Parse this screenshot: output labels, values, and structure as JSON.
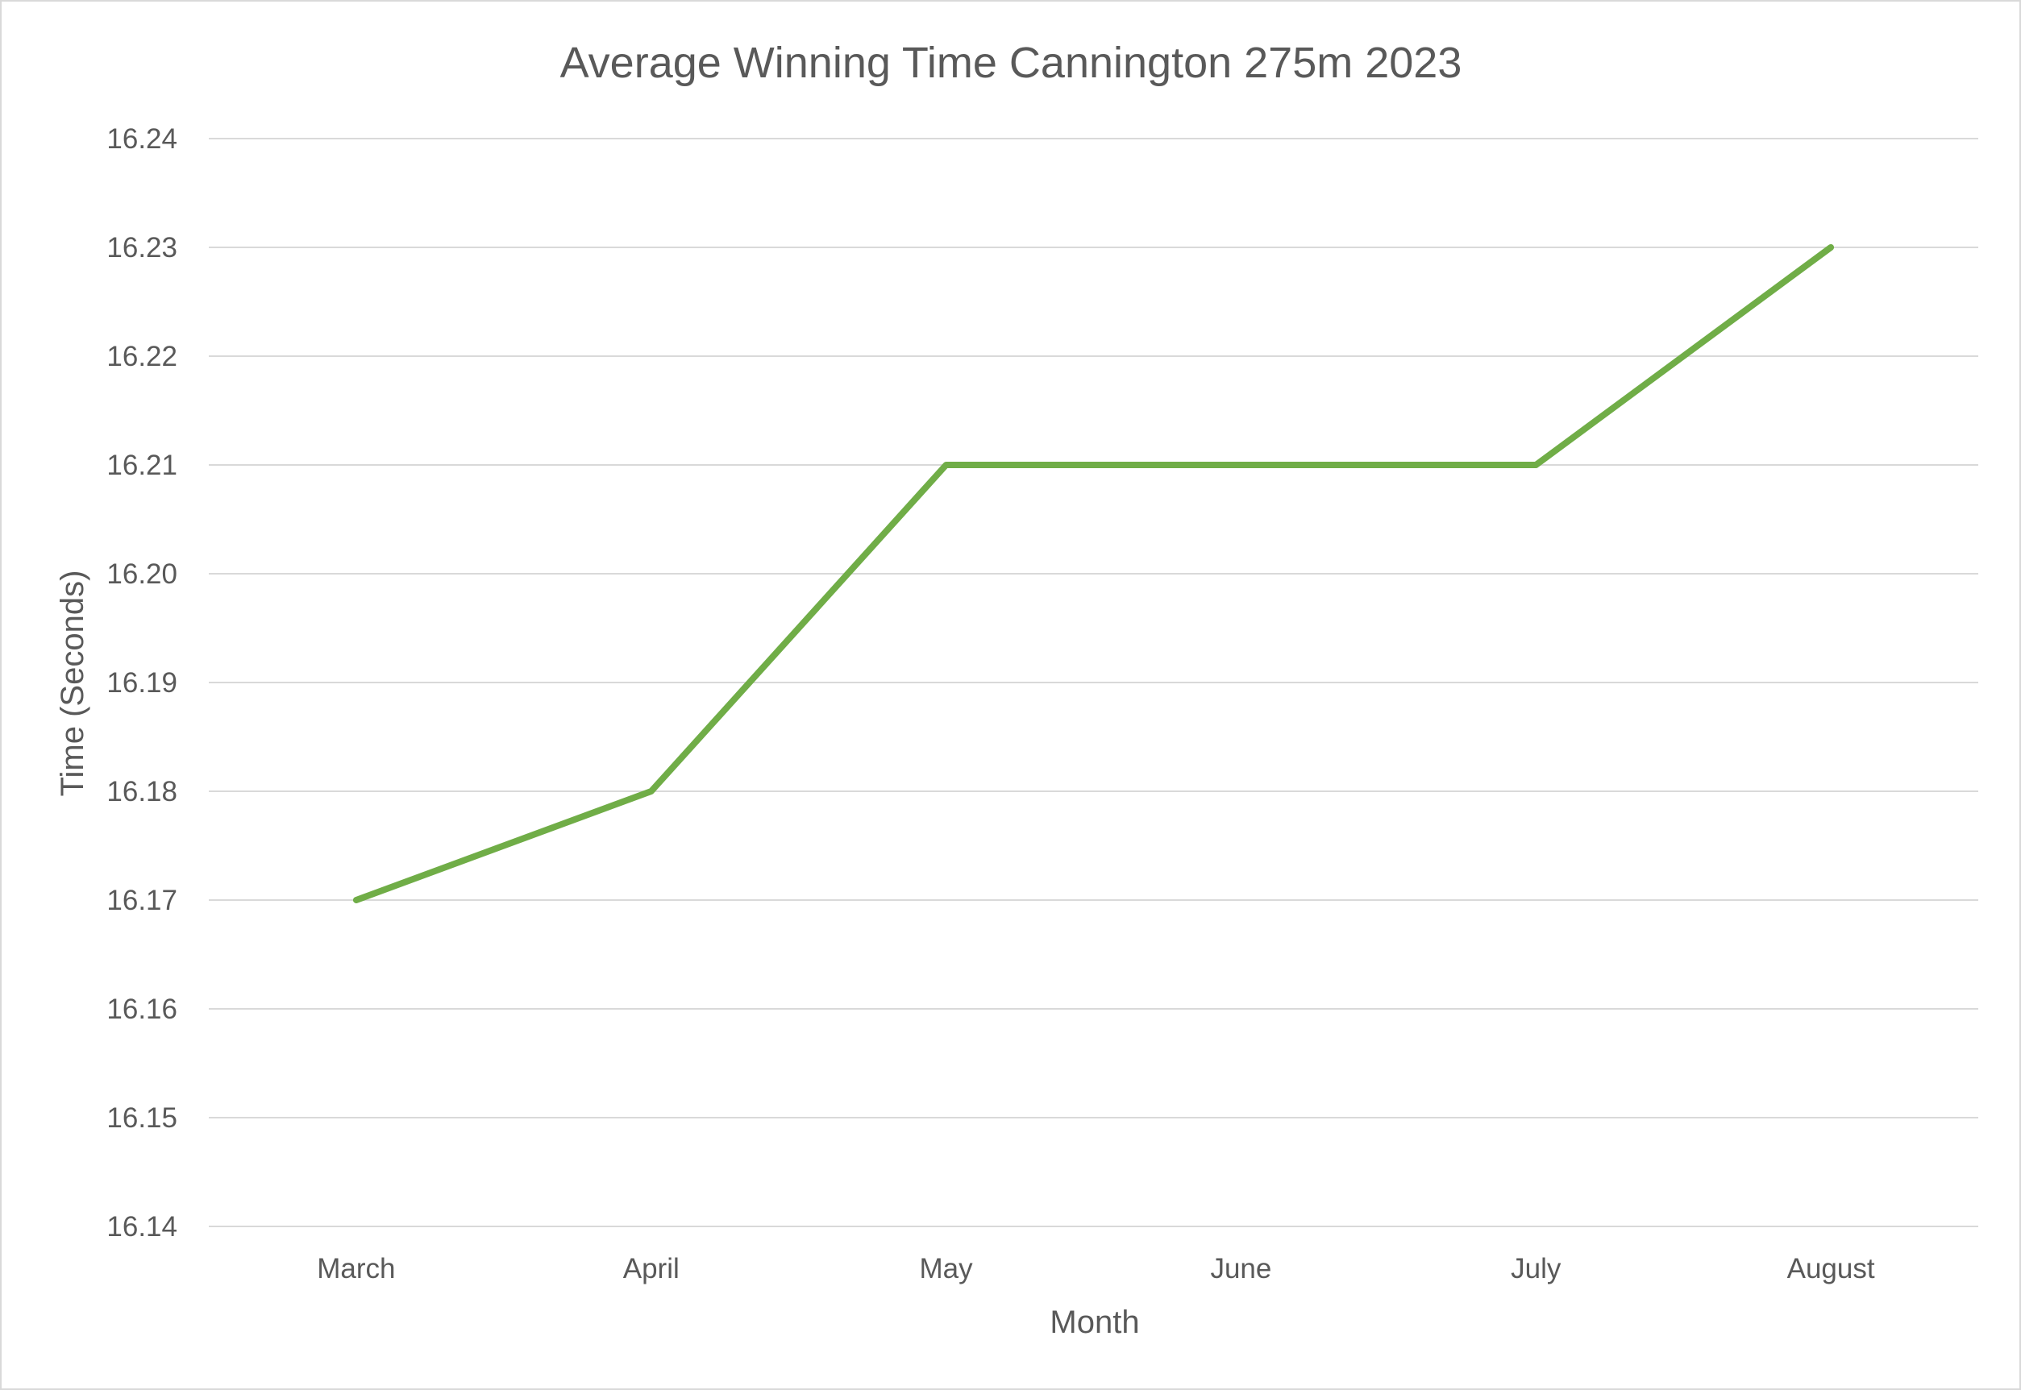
{
  "chart_data": {
    "type": "line",
    "title": "Average Winning Time Cannington 275m 2023",
    "xlabel": "Month",
    "ylabel": "Time (Seconds)",
    "categories": [
      "March",
      "April",
      "May",
      "June",
      "July",
      "August"
    ],
    "series": [
      {
        "values": [
          16.17,
          16.18,
          16.21,
          16.21,
          16.21,
          16.23
        ],
        "color": "#70ad47"
      }
    ],
    "ylim": [
      16.14,
      16.24
    ],
    "yticks": [
      "16.14",
      "16.15",
      "16.16",
      "16.17",
      "16.18",
      "16.19",
      "16.20",
      "16.21",
      "16.22",
      "16.23",
      "16.24"
    ],
    "grid": true,
    "legend": "none"
  }
}
